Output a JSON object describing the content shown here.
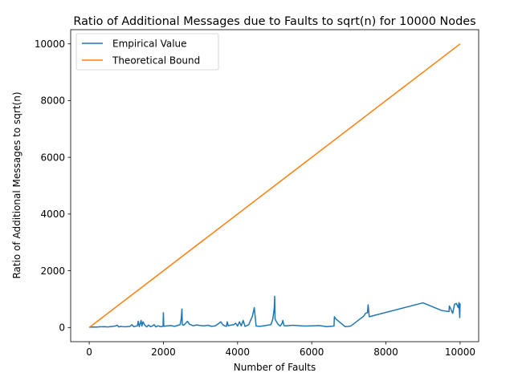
{
  "chart_data": {
    "type": "line",
    "title": "Ratio of Additional Messages due to Faults to sqrt(n) for 10000 Nodes",
    "xlabel": "Number of Faults",
    "ylabel": "Ratio of Additional Messages to sqrt(n)",
    "xlim": [
      -500,
      10500
    ],
    "ylim": [
      -500,
      10500
    ],
    "xticks": [
      0,
      2000,
      4000,
      6000,
      8000,
      10000
    ],
    "yticks": [
      0,
      2000,
      4000,
      6000,
      8000,
      10000
    ],
    "grid": false,
    "legend": "top-left",
    "series": [
      {
        "name": "Empirical Value",
        "color": "#1f77b4",
        "x": [
          0,
          100,
          200,
          300,
          400,
          500,
          600,
          700,
          750,
          800,
          850,
          900,
          1000,
          1100,
          1150,
          1200,
          1300,
          1320,
          1350,
          1400,
          1420,
          1450,
          1500,
          1550,
          1600,
          1650,
          1700,
          1750,
          1800,
          1850,
          1900,
          1950,
          1990,
          2000,
          2010,
          2100,
          2200,
          2300,
          2400,
          2450,
          2480,
          2500,
          2510,
          2550,
          2600,
          2650,
          2700,
          2800,
          2900,
          3000,
          3100,
          3200,
          3300,
          3400,
          3500,
          3550,
          3600,
          3650,
          3700,
          3720,
          3750,
          3800,
          3900,
          3950,
          4000,
          4050,
          4100,
          4150,
          4200,
          4300,
          4400,
          4450,
          4500,
          4600,
          4700,
          4800,
          4900,
          4950,
          4990,
          5000,
          5010,
          5050,
          5100,
          5150,
          5200,
          5220,
          5250,
          5300,
          5500,
          5800,
          6000,
          6200,
          6400,
          6600,
          6610,
          6650,
          6900,
          7000,
          7050,
          7400,
          7450,
          7500,
          7520,
          7550,
          9000,
          9500,
          9600,
          9700,
          9710,
          9750,
          9800,
          9850,
          9900,
          9950,
          9970,
          9990,
          10000
        ],
        "y": [
          10,
          20,
          15,
          25,
          30,
          20,
          35,
          50,
          80,
          20,
          40,
          30,
          25,
          40,
          100,
          30,
          60,
          220,
          30,
          250,
          50,
          200,
          80,
          20,
          90,
          30,
          50,
          100,
          20,
          60,
          40,
          30,
          50,
          520,
          40,
          60,
          70,
          40,
          80,
          100,
          300,
          650,
          100,
          80,
          150,
          220,
          120,
          60,
          90,
          70,
          60,
          80,
          40,
          60,
          150,
          200,
          100,
          60,
          40,
          200,
          60,
          80,
          100,
          150,
          50,
          200,
          60,
          250,
          40,
          100,
          400,
          700,
          50,
          40,
          60,
          80,
          100,
          300,
          700,
          1100,
          300,
          200,
          100,
          50,
          150,
          250,
          70,
          60,
          80,
          50,
          60,
          70,
          30,
          50,
          380,
          300,
          30,
          40,
          50,
          400,
          500,
          520,
          800,
          380,
          870,
          600,
          580,
          560,
          760,
          650,
          500,
          820,
          850,
          700,
          880,
          350,
          850
        ]
      },
      {
        "name": "Theoretical Bound",
        "color": "#ff7f0e",
        "x": [
          0,
          10000
        ],
        "y": [
          0,
          10000
        ]
      }
    ]
  }
}
